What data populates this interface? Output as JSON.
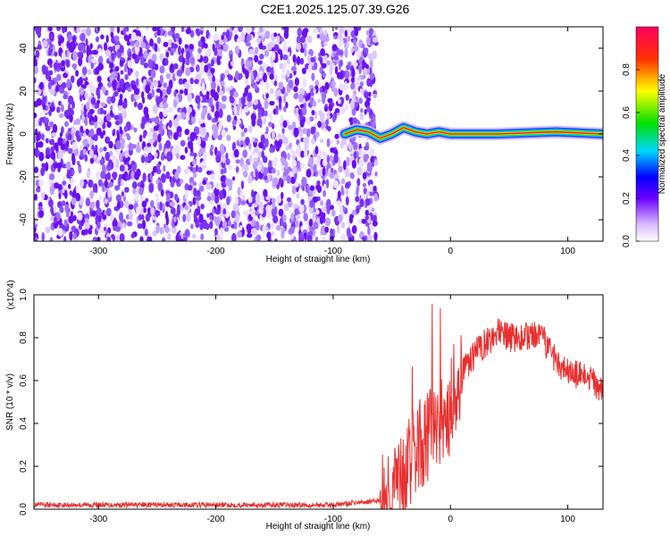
{
  "title": "C2E1.2025.125.07.39.G26",
  "chart_data": [
    {
      "type": "heatmap",
      "xlabel": "Height of straight line (km)",
      "ylabel": "Frequency (Hz)",
      "xlim": [
        -355,
        130
      ],
      "ylim": [
        -50,
        50
      ],
      "xticks": [
        "-300",
        "-200",
        "-100",
        "0",
        "100"
      ],
      "yticks": [
        "-40",
        "-20",
        "0",
        "20",
        "40"
      ],
      "colorbar": {
        "label": "Normalized spectral amplitude",
        "range": [
          0,
          1
        ],
        "ticks": [
          "0.0",
          "0.2",
          "0.4",
          "0.6",
          "0.8"
        ]
      },
      "signal_track": [
        {
          "x": -90,
          "f": 0
        },
        {
          "x": -80,
          "f": 2
        },
        {
          "x": -70,
          "f": 1
        },
        {
          "x": -60,
          "f": -2
        },
        {
          "x": -50,
          "f": 0
        },
        {
          "x": -40,
          "f": 3
        },
        {
          "x": -30,
          "f": 1
        },
        {
          "x": -20,
          "f": 0
        },
        {
          "x": -10,
          "f": 1
        },
        {
          "x": 0,
          "f": 0
        },
        {
          "x": 40,
          "f": 0
        },
        {
          "x": 90,
          "f": 1
        },
        {
          "x": 130,
          "f": 0
        }
      ],
      "noise_region_end_x": -72
    },
    {
      "type": "line",
      "xlabel": "Height of straight line (km)",
      "ylabel": "SNR (10 * v/v)",
      "multiplier": "(x10^4)",
      "xlim": [
        -355,
        130
      ],
      "ylim": [
        0,
        1.0
      ],
      "xticks": [
        "-300",
        "-200",
        "-100",
        "0",
        "100"
      ],
      "yticks": [
        "0.0",
        "0.2",
        "0.4",
        "0.6",
        "0.8",
        "1.0"
      ],
      "color": "#e83030",
      "series": [
        {
          "x": [
            -355,
            -300,
            -250,
            -200,
            -150,
            -100,
            -80,
            -60,
            -50,
            -40,
            -30,
            -20,
            -10,
            0,
            10,
            20,
            30,
            40,
            50,
            60,
            70,
            80,
            90,
            100,
            110,
            120,
            130
          ],
          "values": [
            0.02,
            0.02,
            0.02,
            0.02,
            0.02,
            0.02,
            0.03,
            0.04,
            0.08,
            0.15,
            0.28,
            0.33,
            0.4,
            0.45,
            0.63,
            0.72,
            0.78,
            0.82,
            0.8,
            0.8,
            0.81,
            0.78,
            0.7,
            0.64,
            0.62,
            0.6,
            0.56
          ]
        }
      ]
    }
  ]
}
